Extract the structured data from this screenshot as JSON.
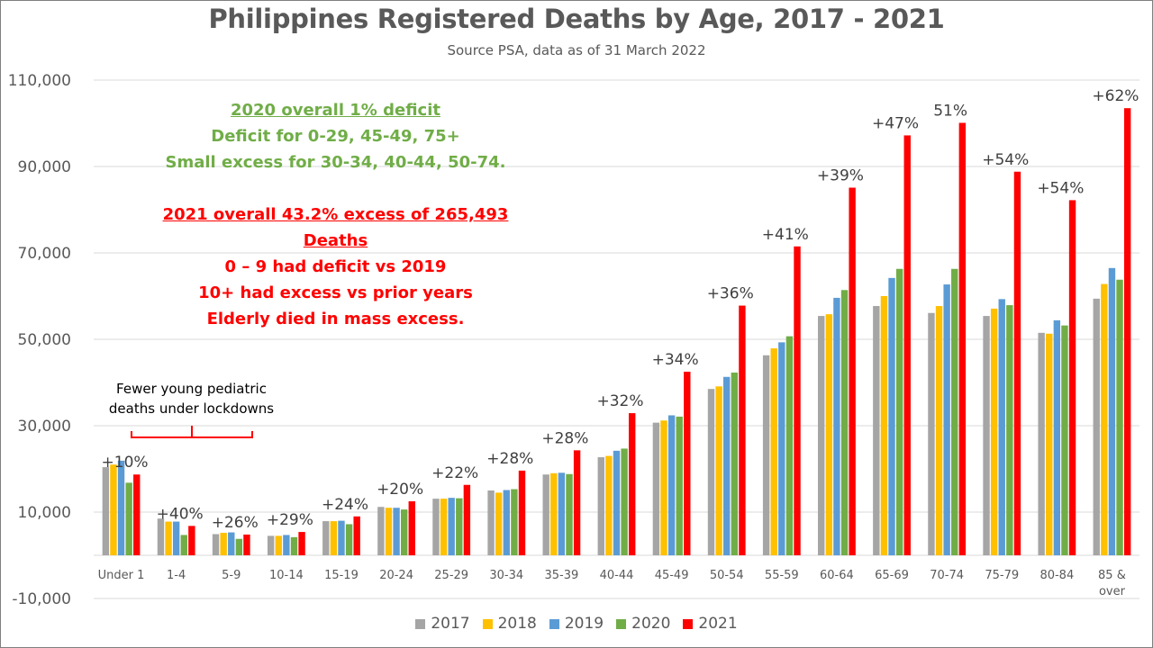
{
  "chart_data": {
    "type": "bar",
    "title": "Philippines Registered Deaths by Age, 2017 - 2021",
    "subtitle": "Source PSA, data as of 31 March 2022",
    "ylim": [
      -10000,
      110000
    ],
    "y_ticks": [
      "110,000",
      "90,000",
      "70,000",
      "50,000",
      "30,000",
      "10,000",
      "-10,000"
    ],
    "y_tick_values": [
      110000,
      90000,
      70000,
      50000,
      30000,
      10000,
      -10000
    ],
    "grid": true,
    "legend_position": "bottom",
    "categories": [
      "Under 1",
      "1-4",
      "5-9",
      "10-14",
      "15-19",
      "20-24",
      "25-29",
      "30-34",
      "35-39",
      "40-44",
      "45-49",
      "50-54",
      "55-59",
      "60-64",
      "65-69",
      "70-74",
      "75-79",
      "80-84",
      "85 & over"
    ],
    "series": [
      {
        "name": "2017",
        "color": "#a5a5a5",
        "values": [
          20400,
          8500,
          4900,
          4500,
          7900,
          11200,
          13100,
          15000,
          18700,
          22700,
          30700,
          38500,
          46300,
          55400,
          57700,
          56100,
          55400,
          51500,
          59400
        ]
      },
      {
        "name": "2018",
        "color": "#ffc000",
        "values": [
          21000,
          7800,
          5200,
          4500,
          7900,
          11000,
          13100,
          14500,
          19000,
          23000,
          31200,
          39100,
          47900,
          55800,
          60000,
          57700,
          57100,
          51300,
          62800
        ]
      },
      {
        "name": "2019",
        "color": "#5b9bd5",
        "values": [
          21900,
          7800,
          5300,
          4700,
          8000,
          11000,
          13300,
          15100,
          19100,
          24200,
          32400,
          41300,
          49300,
          59600,
          64200,
          62700,
          59300,
          54400,
          66500
        ]
      },
      {
        "name": "2020",
        "color": "#70ad47",
        "values": [
          16800,
          4700,
          3800,
          4200,
          7200,
          10600,
          13200,
          15300,
          18800,
          24700,
          32100,
          42300,
          50700,
          61400,
          66300,
          66300,
          57900,
          53200,
          63800
        ]
      },
      {
        "name": "2021",
        "color": "#ff0000",
        "values": [
          18700,
          6800,
          4800,
          5400,
          9000,
          12500,
          16300,
          19600,
          24300,
          32900,
          42500,
          57800,
          71500,
          85100,
          97200,
          100100,
          88800,
          82200,
          103500
        ]
      }
    ],
    "data_labels": [
      "+10%",
      "+40%",
      "+26%",
      "+29%",
      "+24%",
      "+20%",
      "+22%",
      "+28%",
      "+28%",
      "+32%",
      "+34%",
      "+36%",
      "+41%",
      "+39%",
      "+47%",
      "51%",
      "+54%",
      "+54%",
      "+62%"
    ]
  },
  "annotations": {
    "green_lines": [
      "2020 overall 1% deficit",
      "Deficit for 0-29, 45-49, 75+",
      "Small excess for 30-34, 40-44, 50-74."
    ],
    "red_lines": [
      "2021 overall 43.2% excess of 265,493 Deaths",
      "0 – 9 had deficit vs 2019",
      "10+ had excess vs prior years",
      "Elderly died in mass excess."
    ],
    "pediatric_note": [
      "Fewer young pediatric",
      "deaths under lockdowns"
    ]
  },
  "colors": {
    "gridline": "#d9d9d9",
    "axis_text": "#595959",
    "title": "#595959",
    "bracket": "#ff0000"
  }
}
